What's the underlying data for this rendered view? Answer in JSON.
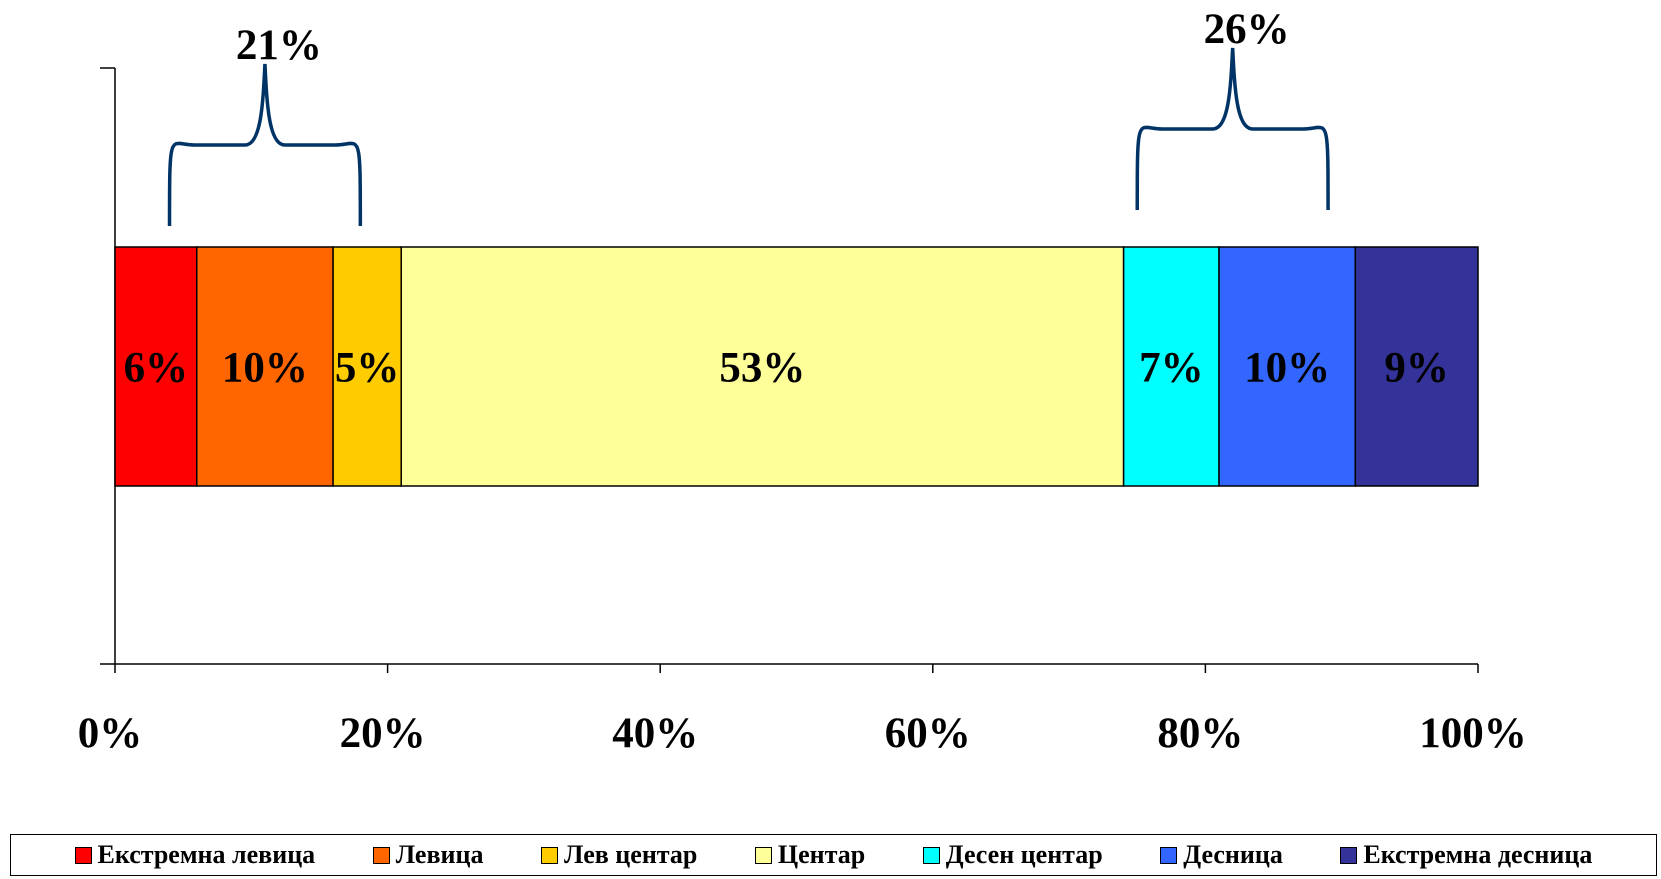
{
  "chart_data": {
    "type": "bar",
    "orientation": "horizontal",
    "stacked": true,
    "title": "",
    "xlabel": "",
    "ylabel": "",
    "xlim": [
      0,
      100
    ],
    "x_ticks": [
      "0%",
      "20%",
      "40%",
      "60%",
      "80%",
      "100%"
    ],
    "grid": false,
    "legend_position": "bottom",
    "series": [
      {
        "name": "Екстремна левица",
        "value": 6,
        "label": "6%",
        "color": "#ff0000"
      },
      {
        "name": "Левица",
        "value": 10,
        "label": "10%",
        "color": "#ff6600"
      },
      {
        "name": "Лев центар",
        "value": 5,
        "label": "5%",
        "color": "#ffcc00"
      },
      {
        "name": "Центар",
        "value": 53,
        "label": "53%",
        "color": "#ffff99"
      },
      {
        "name": "Десен центар",
        "value": 7,
        "label": "7%",
        "color": "#00ffff"
      },
      {
        "name": "Десница",
        "value": 10,
        "label": "10%",
        "color": "#3366ff"
      },
      {
        "name": "Екстремна десница",
        "value": 9,
        "label": "9%",
        "color": "#333399"
      }
    ],
    "annotations": [
      {
        "text": "21%",
        "from": 4,
        "to": 18,
        "color": "#003366"
      },
      {
        "text": "26%",
        "from": 75,
        "to": 89,
        "color": "#003366"
      }
    ]
  }
}
